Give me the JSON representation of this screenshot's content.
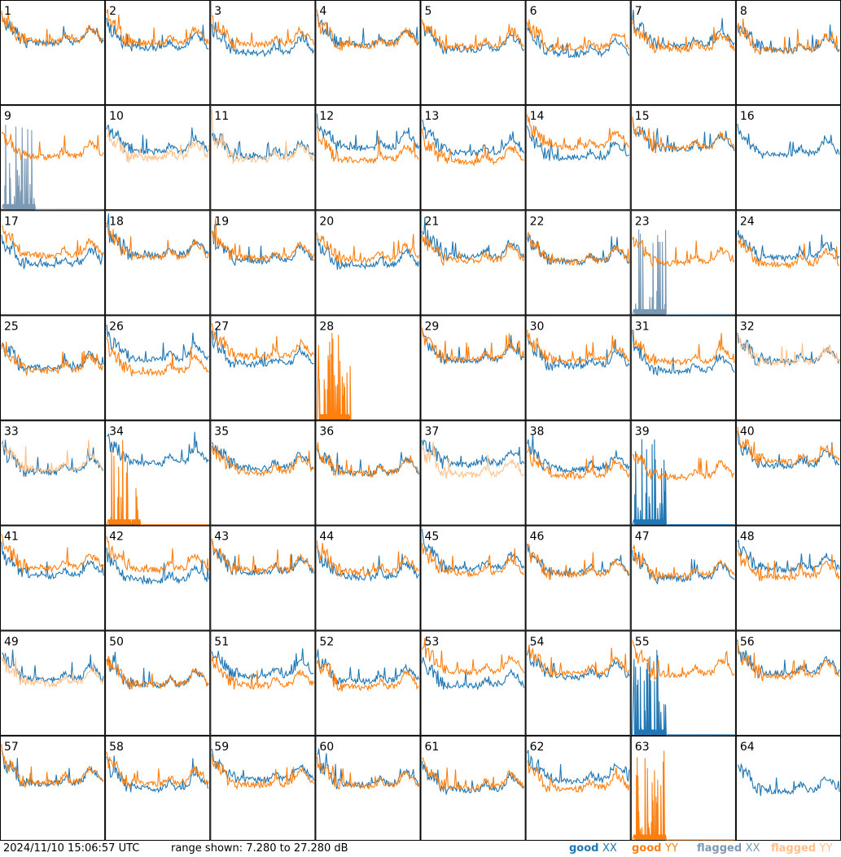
{
  "chart_data": {
    "type": "line",
    "grid": {
      "rows": 8,
      "cols": 8
    },
    "panels": [
      "1",
      "2",
      "3",
      "4",
      "5",
      "6",
      "7",
      "8",
      "9",
      "10",
      "11",
      "12",
      "13",
      "14",
      "15",
      "16",
      "17",
      "18",
      "19",
      "20",
      "21",
      "22",
      "23",
      "24",
      "25",
      "26",
      "27",
      "28",
      "29",
      "30",
      "31",
      "32",
      "33",
      "34",
      "35",
      "36",
      "37",
      "38",
      "39",
      "40",
      "41",
      "42",
      "43",
      "44",
      "45",
      "46",
      "47",
      "48",
      "49",
      "50",
      "51",
      "52",
      "53",
      "54",
      "55",
      "56",
      "57",
      "58",
      "59",
      "60",
      "61",
      "62",
      "63",
      "64"
    ],
    "flagged_xx": [
      "9",
      "23"
    ],
    "flagged_yy": [
      "10",
      "11",
      "32",
      "33",
      "37",
      "49"
    ],
    "spiky_xx": [
      "9",
      "23",
      "39",
      "55"
    ],
    "spiky_yy": [
      "28",
      "34",
      "63"
    ],
    "absent_xx": [
      "28",
      "63"
    ],
    "absent_yy": [
      "16",
      "64"
    ],
    "ylim": [
      7.28,
      27.28
    ],
    "unit": "dB"
  },
  "footer": {
    "timestamp": "2024/11/10 15:06:57 UTC",
    "range_text": "range shown: 7.280 to 27.280 dB"
  },
  "legend": [
    {
      "label": "good",
      "pol": "XX",
      "color": "#1f77b4"
    },
    {
      "label": "good",
      "pol": "YY",
      "color": "#ff7f0e"
    },
    {
      "label": "flagged",
      "pol": "XX",
      "color": "#7a99b4"
    },
    {
      "label": "flagged",
      "pol": "YY",
      "color": "#ffc08a"
    }
  ],
  "colors": {
    "good_xx": "#1f77b4",
    "good_yy": "#ff7f0e",
    "flagged_xx": "#7a99b4",
    "flagged_yy": "#ffc08a"
  }
}
